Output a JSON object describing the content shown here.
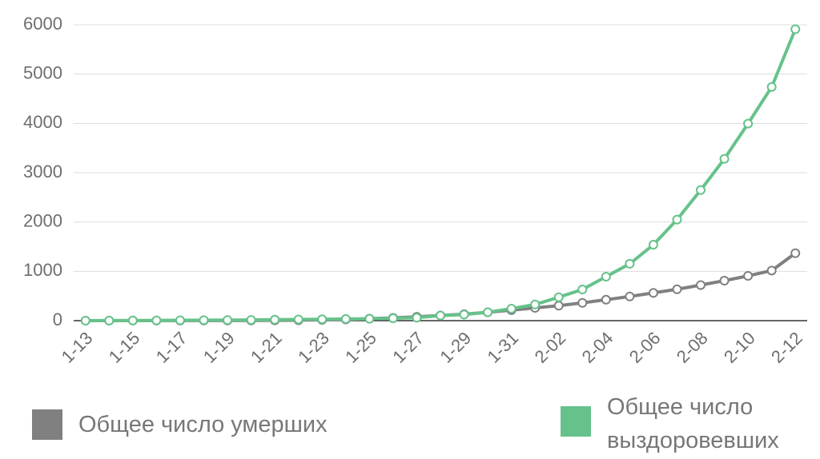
{
  "chart_data": {
    "type": "line",
    "categories": [
      "1-13",
      null,
      "1-15",
      null,
      "1-17",
      null,
      "1-19",
      null,
      "1-21",
      null,
      "1-23",
      null,
      "1-25",
      null,
      "1-27",
      null,
      "1-29",
      null,
      "1-31",
      null,
      "2-02",
      null,
      "2-04",
      null,
      "2-06",
      null,
      "2-08",
      null,
      "2-10",
      null,
      "2-12"
    ],
    "series": [
      {
        "name": "Общее число умерших",
        "color": "#808080",
        "values": [
          1,
          1,
          2,
          2,
          2,
          3,
          3,
          4,
          6,
          9,
          17,
          25,
          41,
          56,
          80,
          106,
          132,
          170,
          213,
          259,
          304,
          361,
          425,
          490,
          563,
          636,
          722,
          811,
          908,
          1016,
          1368
        ]
      },
      {
        "name": "Общее число выздоровевших",
        "color": "#66c28a",
        "values": [
          0,
          2,
          3,
          5,
          8,
          10,
          12,
          15,
          20,
          25,
          28,
          34,
          38,
          49,
          60,
          103,
          124,
          171,
          243,
          328,
          475,
          632,
          892,
          1153,
          1540,
          2050,
          2649,
          3281,
          3996,
          4740,
          5911
        ]
      }
    ],
    "ylim": [
      0,
      6000
    ],
    "yticks": [
      0,
      1000,
      2000,
      3000,
      4000,
      5000,
      6000
    ],
    "grid": true
  }
}
